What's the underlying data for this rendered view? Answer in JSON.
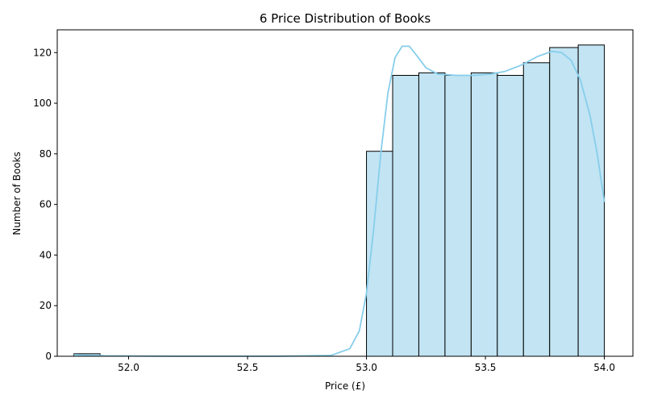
{
  "chart_data": {
    "type": "bar",
    "title": "6 Price Distribution of Books",
    "xlabel": "Price (£)",
    "ylabel": "Number of Books",
    "xlim": [
      51.7,
      54.12
    ],
    "ylim": [
      0,
      129
    ],
    "xticks": [
      52.0,
      52.5,
      53.0,
      53.5,
      54.0
    ],
    "xtick_labels": [
      "52.0",
      "52.5",
      "53.0",
      "53.5",
      "54.0"
    ],
    "yticks": [
      0,
      20,
      40,
      60,
      80,
      100,
      120
    ],
    "ytick_labels": [
      "0",
      "20",
      "40",
      "60",
      "80",
      "100",
      "120"
    ],
    "bins": [
      {
        "start": 51.77,
        "end": 51.88,
        "count": 1
      },
      {
        "start": 53.0,
        "end": 53.11,
        "count": 81
      },
      {
        "start": 53.11,
        "end": 53.22,
        "count": 111
      },
      {
        "start": 53.22,
        "end": 53.33,
        "count": 112
      },
      {
        "start": 53.33,
        "end": 53.44,
        "count": 111
      },
      {
        "start": 53.44,
        "end": 53.55,
        "count": 112
      },
      {
        "start": 53.55,
        "end": 53.66,
        "count": 111
      },
      {
        "start": 53.66,
        "end": 53.77,
        "count": 116
      },
      {
        "start": 53.77,
        "end": 53.89,
        "count": 122
      },
      {
        "start": 53.89,
        "end": 54.0,
        "count": 123
      }
    ],
    "kde": {
      "x": [
        51.77,
        51.9,
        52.2,
        52.6,
        52.85,
        52.93,
        52.97,
        53.0,
        53.03,
        53.06,
        53.09,
        53.12,
        53.15,
        53.18,
        53.21,
        53.25,
        53.3,
        53.38,
        53.45,
        53.52,
        53.58,
        53.65,
        53.72,
        53.78,
        53.82,
        53.86,
        53.9,
        53.94,
        53.97,
        54.0
      ],
      "y": [
        0.6,
        0.2,
        0.0,
        0.0,
        0.3,
        3,
        10,
        25,
        50,
        80,
        104,
        118,
        122.5,
        122.5,
        119,
        114,
        111.5,
        111,
        111,
        111.5,
        112.5,
        115,
        118.5,
        120.5,
        120,
        117,
        109,
        95,
        80,
        61
      ]
    },
    "colors": {
      "bar_fill": "#c2e4f3",
      "bar_edge": "#000000",
      "kde_line": "#87ceeb"
    },
    "grid": false,
    "legend": "none"
  }
}
